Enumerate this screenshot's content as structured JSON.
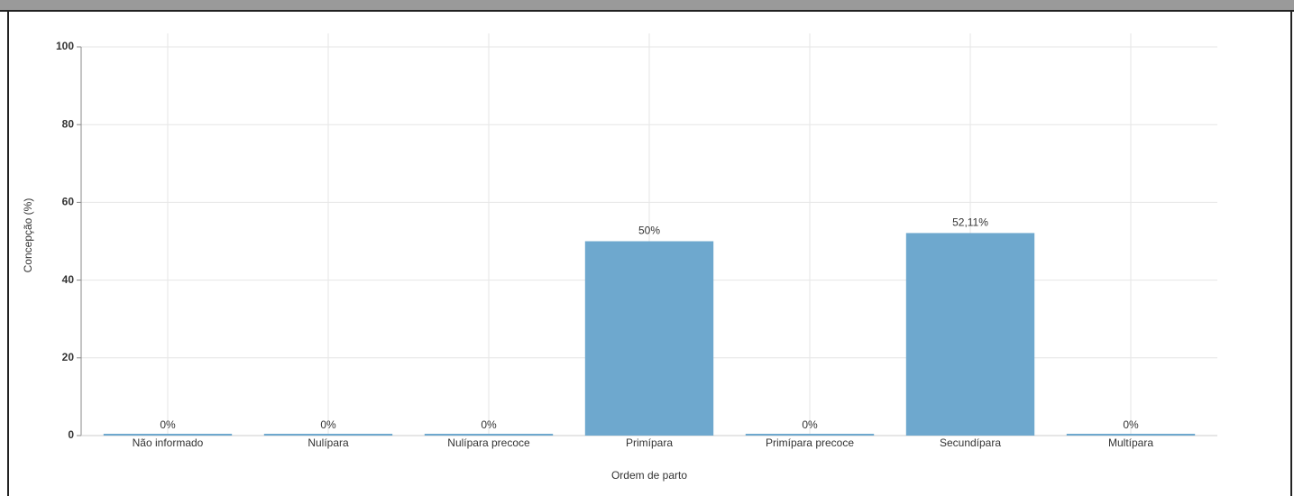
{
  "chart_data": {
    "type": "bar",
    "categories": [
      "Não informado",
      "Nulípara",
      "Nulípara precoce",
      "Primípara",
      "Primípara precoce",
      "Secundípara",
      "Multípara"
    ],
    "values": [
      0,
      0,
      0,
      50,
      0,
      52.11,
      0
    ],
    "value_labels": [
      "0%",
      "0%",
      "0%",
      "50%",
      "0%",
      "52,11%",
      "0%"
    ],
    "color": "#6ea8ce",
    "ylim": [
      0,
      100
    ],
    "yticks": [
      0,
      20,
      40,
      60,
      80,
      100
    ],
    "x_label": "Ordem de parto",
    "y_label": "Concepção (%)",
    "grid": true
  }
}
